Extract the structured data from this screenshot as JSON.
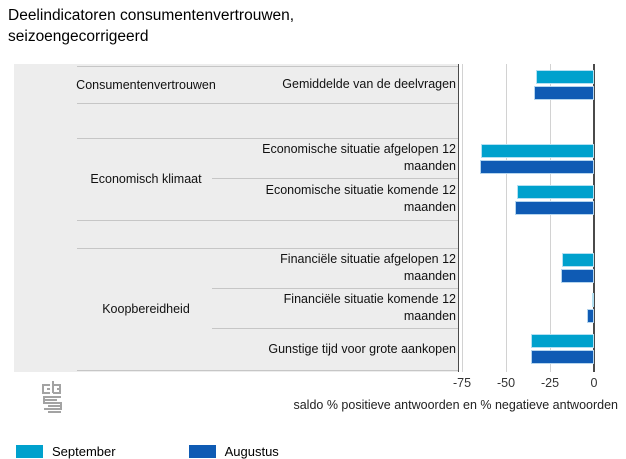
{
  "title": "Deelindicatoren consumentenvertrouwen, seizoengecorrigeerd",
  "chart_data": {
    "type": "bar",
    "orientation": "horizontal",
    "title": "Deelindicatoren consumentenvertrouwen, seizoengecorrigeerd",
    "xlabel": "saldo % positieve antwoorden en % negatieve antwoorden",
    "xlim": [
      -75,
      0
    ],
    "x_ticks": [
      -75,
      -50,
      -25,
      0
    ],
    "grid": "vertical-gridlines",
    "legend_position": "bottom-left",
    "categories": [
      "Gemiddelde van de deelvragen",
      "Economische situatie afgelopen 12 maanden",
      "Economische situatie komende 12 maanden",
      "Financiële situatie afgelopen 12 maanden",
      "Financiële situatie komende 12 maanden",
      "Gunstige tijd voor grote aankopen"
    ],
    "category_groups": [
      {
        "name": "Consumentenvertrouwen",
        "rows": [
          0
        ]
      },
      {
        "name": "Economisch klimaat",
        "rows": [
          1,
          2
        ]
      },
      {
        "name": "Koopbereidheid",
        "rows": [
          3,
          4,
          5
        ]
      }
    ],
    "series": [
      {
        "name": "September",
        "color": "#00a1cd",
        "values": [
          -33,
          -64,
          -44,
          -18,
          -1,
          -36
        ]
      },
      {
        "name": "Augustus",
        "color": "#0f5bb4",
        "values": [
          -34,
          -65,
          -45,
          -19,
          -4,
          -36
        ]
      }
    ]
  },
  "axis": {
    "tick_labels": [
      "-75",
      "-50",
      "-25",
      "0"
    ],
    "caption": "saldo % positieve antwoorden en % negatieve antwoorden"
  },
  "legend": {
    "items": [
      {
        "label": "September",
        "color": "#00a1cd"
      },
      {
        "label": "Augustus",
        "color": "#0f5bb4"
      }
    ]
  },
  "logo_name": "cbs-logo"
}
